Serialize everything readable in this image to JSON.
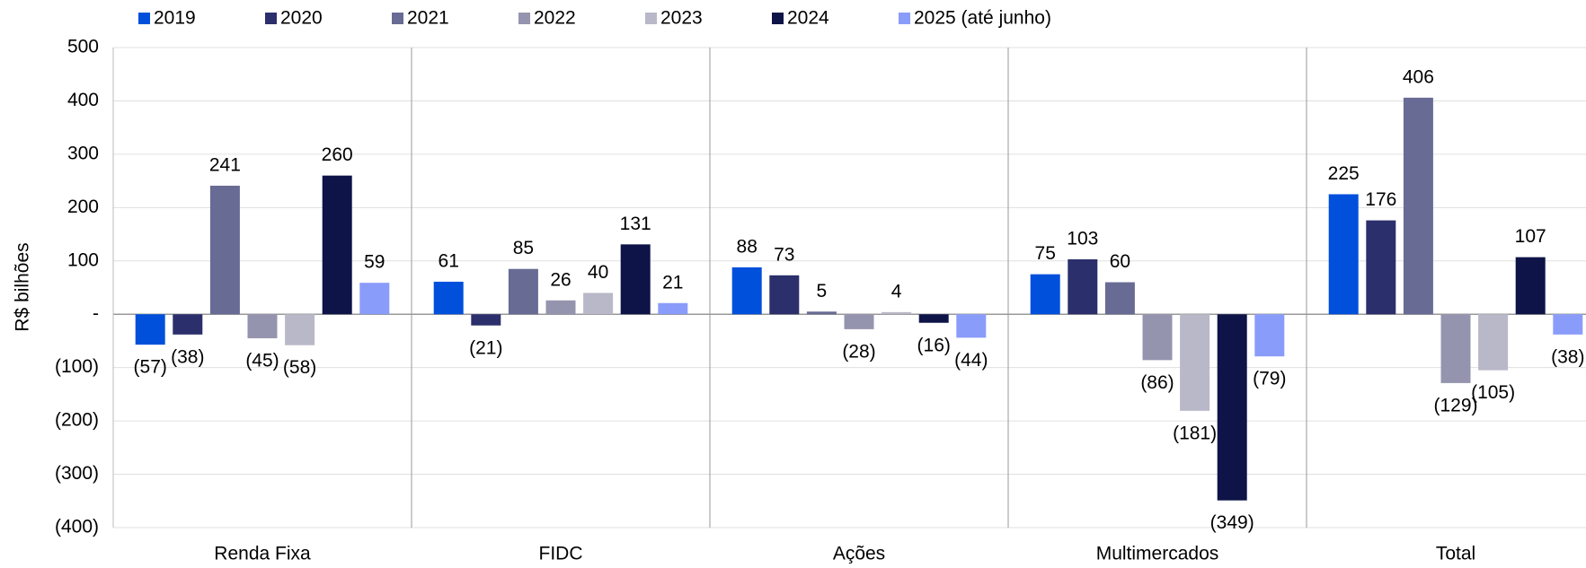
{
  "chart_data": {
    "type": "bar",
    "y_label": "R$ bilhões",
    "categories": [
      "Renda Fixa",
      "FIDC",
      "Ações",
      "Multimercados",
      "Total"
    ],
    "series": [
      {
        "name": "2019",
        "color": "#0050dc",
        "values": [
          -57,
          61,
          88,
          75,
          225
        ],
        "value_labels": [
          "(57)",
          "61",
          "88",
          "75",
          "225"
        ]
      },
      {
        "name": "2020",
        "color": "#2b2f6b",
        "values": [
          -38,
          -21,
          73,
          103,
          176
        ],
        "value_labels": [
          "(38)",
          "(21)",
          "73",
          "103",
          "176"
        ]
      },
      {
        "name": "2021",
        "color": "#686b94",
        "values": [
          241,
          85,
          5,
          60,
          406
        ],
        "value_labels": [
          "241",
          "85",
          "5",
          "60",
          "406"
        ]
      },
      {
        "name": "2022",
        "color": "#9594ae",
        "values": [
          -45,
          26,
          -28,
          -86,
          -129
        ],
        "value_labels": [
          "(45)",
          "26",
          "(28)",
          "(86)",
          "(129)"
        ]
      },
      {
        "name": "2023",
        "color": "#b8b8c8",
        "values": [
          -58,
          40,
          4,
          -181,
          -105
        ],
        "value_labels": [
          "(58)",
          "40",
          "4",
          "(181)",
          "(105)"
        ]
      },
      {
        "name": "2024",
        "color": "#0e1447",
        "values": [
          260,
          131,
          -16,
          -349,
          107
        ],
        "value_labels": [
          "260",
          "131",
          "(16)",
          "(349)",
          "107"
        ]
      },
      {
        "name": "2025 (até junho)",
        "color": "#8a9cfa",
        "values": [
          59,
          21,
          -44,
          -79,
          -38
        ],
        "value_labels": [
          "59",
          "21",
          "(44)",
          "(79)",
          "(38)"
        ]
      }
    ],
    "ylim": [
      -400,
      500
    ],
    "yticks": [
      500,
      400,
      300,
      200,
      100,
      {
        "value": 0,
        "label": "-"
      },
      {
        "value": -100,
        "label": "(100)"
      },
      {
        "value": -200,
        "label": "(200)"
      },
      {
        "value": -300,
        "label": "(300)"
      },
      {
        "value": -400,
        "label": "(400)"
      }
    ],
    "grid": true,
    "legend": "top"
  }
}
